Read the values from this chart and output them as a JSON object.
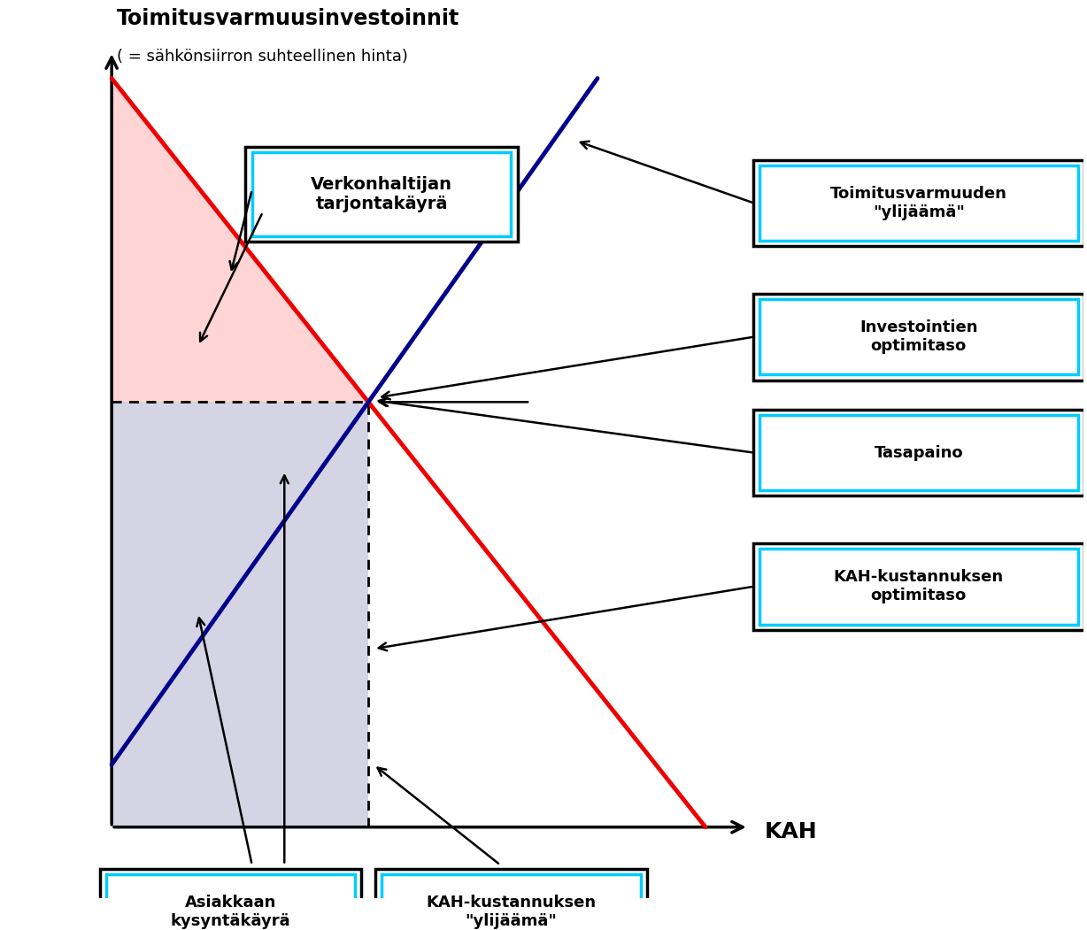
{
  "title_line1": "Toimitusvarmuusinvestoinnit",
  "title_line2": "( = sähkönsiirron suhteellinen hinta)",
  "xlabel": "KAH",
  "red_line_color": "#EE0000",
  "blue_line_color": "#00008B",
  "pink_fill_color": "#FFAAAA",
  "lavender_fill_color": "#AAAACC",
  "pink_fill_alpha": 0.5,
  "lavender_fill_alpha": 0.5,
  "boxes_right_texts": [
    "Toimitusvarmuuden\n\"ylijäämä\"",
    "Investointien\noptimitaso",
    "Tasapaino",
    "KAH-kustannuksen\noptimitaso"
  ],
  "box_supply_text": "Verkonhaltijan\ntarjontakäyrä",
  "box_demand_text": "Asiakkaan\nkysyntäkäyrä",
  "box_kah_text": "KAH-kustannuksen\n\"ylijäämä\""
}
